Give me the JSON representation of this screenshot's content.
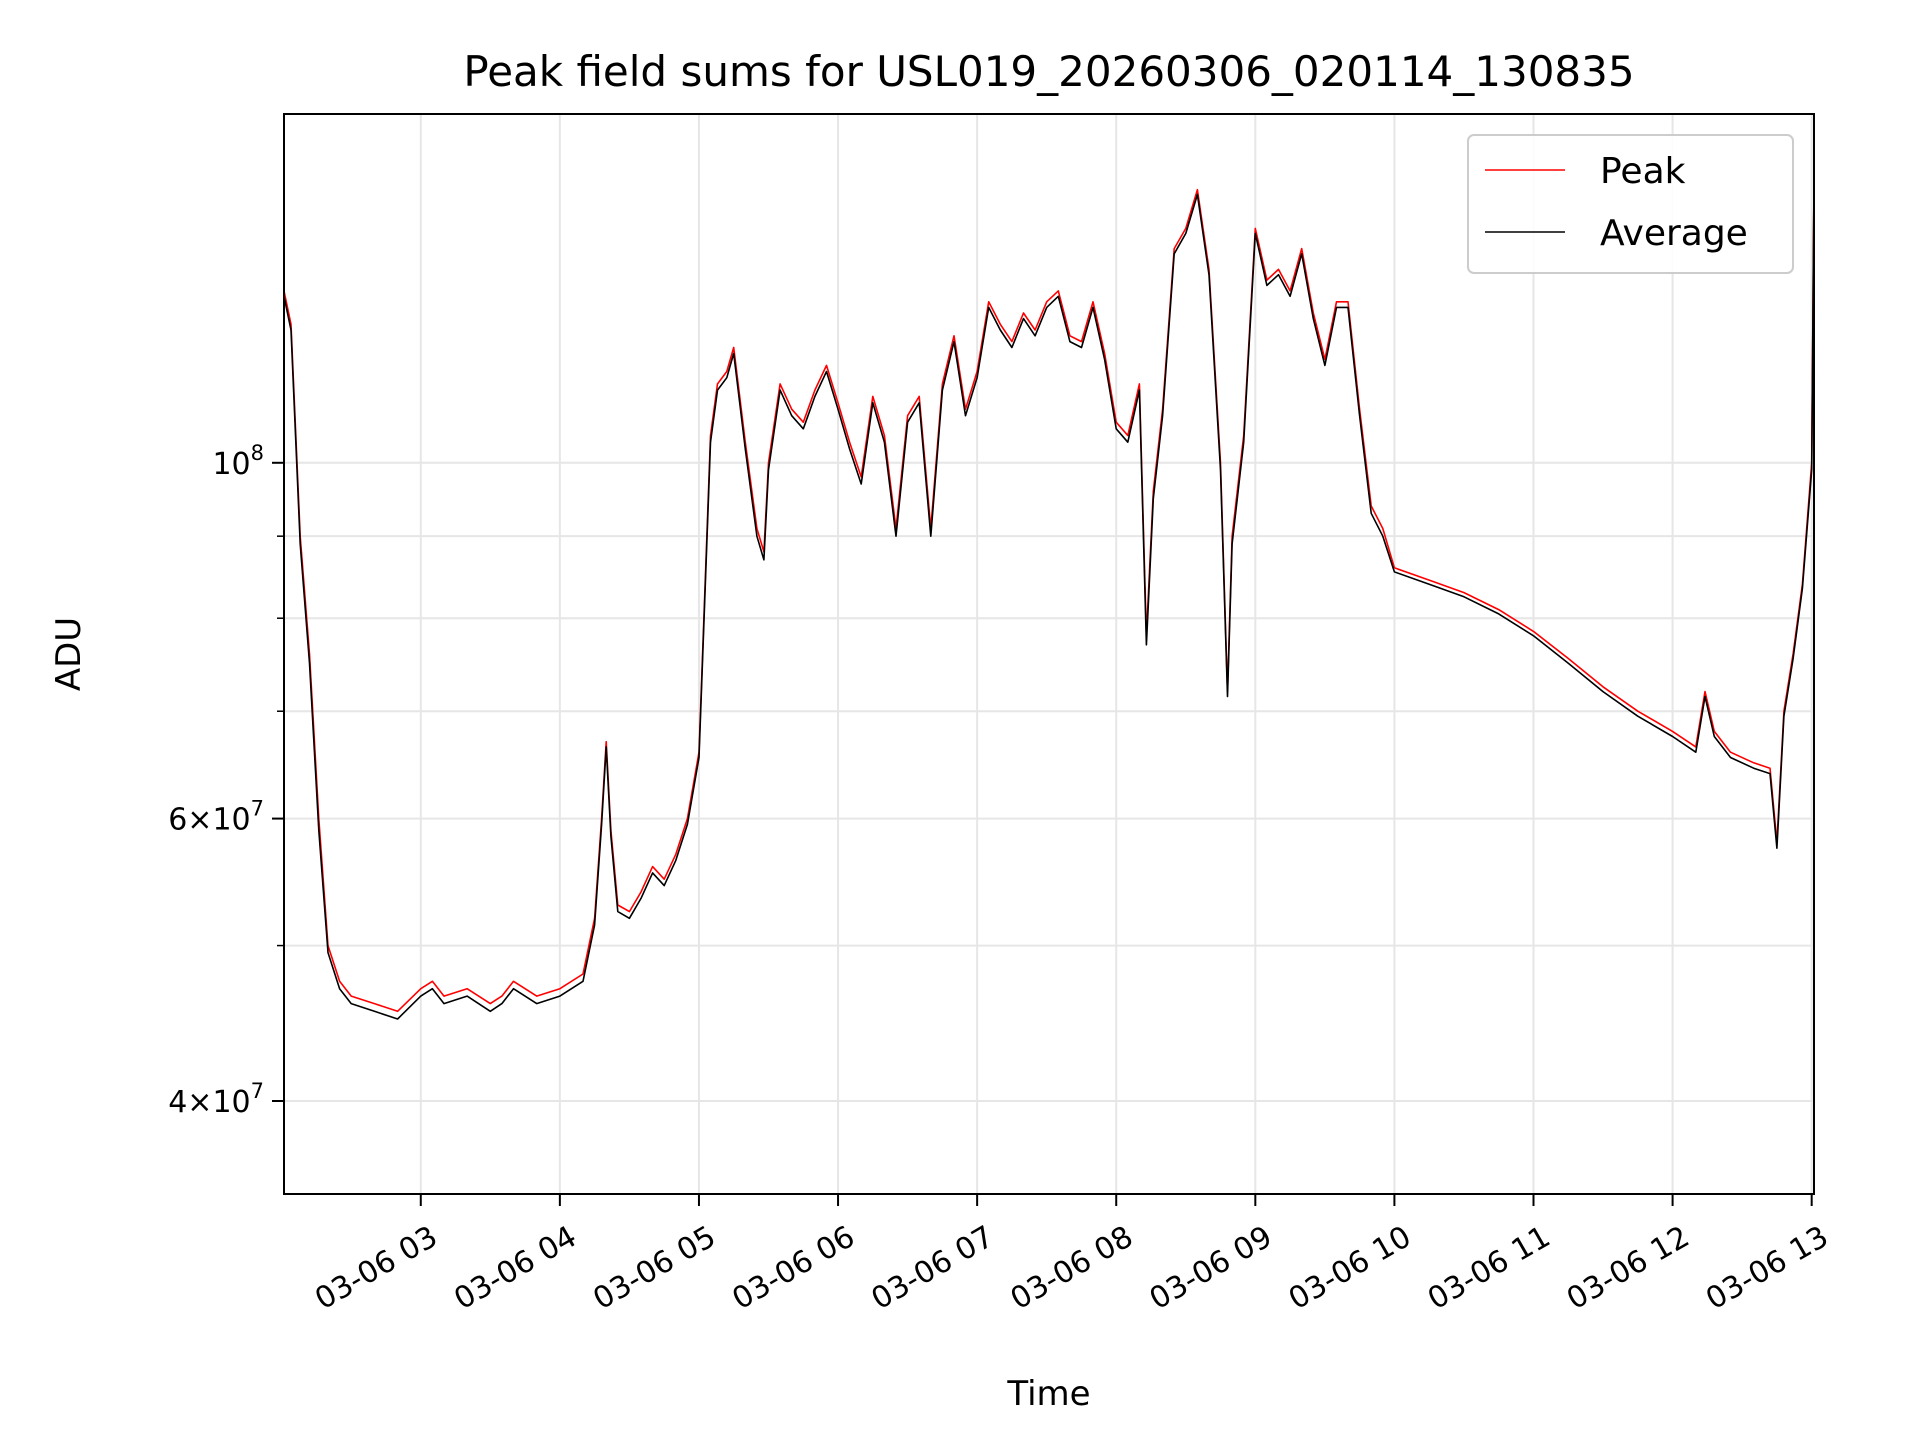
{
  "chart_data": {
    "type": "line",
    "title": "Peak field sums for USL019_20260306_020114_130835",
    "xlabel": "Time",
    "ylabel": "ADU",
    "y_scale": "log",
    "ylim": [
      35000000,
      165000000
    ],
    "xlim": [
      "2026-03-06 02:01",
      "2026-03-06 13:01"
    ],
    "x_ticks": [
      "03-06 03",
      "03-06 04",
      "03-06 05",
      "03-06 06",
      "03-06 07",
      "03-06 08",
      "03-06 09",
      "03-06 10",
      "03-06 11",
      "03-06 12",
      "03-06 13"
    ],
    "x_tick_times": [
      "2026-03-06 03:00",
      "2026-03-06 04:00",
      "2026-03-06 05:00",
      "2026-03-06 06:00",
      "2026-03-06 07:00",
      "2026-03-06 08:00",
      "2026-03-06 09:00",
      "2026-03-06 10:00",
      "2026-03-06 11:00",
      "2026-03-06 12:00",
      "2026-03-06 13:00"
    ],
    "y_ticks": [
      {
        "value": 40000000,
        "mantissa": "4",
        "exponent": "7"
      },
      {
        "value": 60000000,
        "mantissa": "6",
        "exponent": "7"
      },
      {
        "value": 100000000,
        "mantissa": "",
        "exponent": "8"
      }
    ],
    "y_minor_ticks": [
      50000000,
      70000000,
      80000000,
      90000000
    ],
    "grid": true,
    "legend_position": "top-right",
    "x": [
      "2026-03-06 02:01",
      "2026-03-06 02:04",
      "2026-03-06 02:08",
      "2026-03-06 02:12",
      "2026-03-06 02:16",
      "2026-03-06 02:20",
      "2026-03-06 02:25",
      "2026-03-06 02:30",
      "2026-03-06 02:40",
      "2026-03-06 02:50",
      "2026-03-06 03:00",
      "2026-03-06 03:05",
      "2026-03-06 03:10",
      "2026-03-06 03:20",
      "2026-03-06 03:30",
      "2026-03-06 03:35",
      "2026-03-06 03:40",
      "2026-03-06 03:50",
      "2026-03-06 04:00",
      "2026-03-06 04:10",
      "2026-03-06 04:15",
      "2026-03-06 04:18",
      "2026-03-06 04:20",
      "2026-03-06 04:22",
      "2026-03-06 04:25",
      "2026-03-06 04:30",
      "2026-03-06 04:35",
      "2026-03-06 04:40",
      "2026-03-06 04:45",
      "2026-03-06 04:50",
      "2026-03-06 04:55",
      "2026-03-06 05:00",
      "2026-03-06 05:05",
      "2026-03-06 05:08",
      "2026-03-06 05:12",
      "2026-03-06 05:15",
      "2026-03-06 05:20",
      "2026-03-06 05:25",
      "2026-03-06 05:28",
      "2026-03-06 05:30",
      "2026-03-06 05:35",
      "2026-03-06 05:40",
      "2026-03-06 05:45",
      "2026-03-06 05:50",
      "2026-03-06 05:55",
      "2026-03-06 06:00",
      "2026-03-06 06:05",
      "2026-03-06 06:10",
      "2026-03-06 06:15",
      "2026-03-06 06:20",
      "2026-03-06 06:25",
      "2026-03-06 06:30",
      "2026-03-06 06:35",
      "2026-03-06 06:40",
      "2026-03-06 06:45",
      "2026-03-06 06:50",
      "2026-03-06 06:55",
      "2026-03-06 07:00",
      "2026-03-06 07:05",
      "2026-03-06 07:10",
      "2026-03-06 07:15",
      "2026-03-06 07:20",
      "2026-03-06 07:25",
      "2026-03-06 07:30",
      "2026-03-06 07:35",
      "2026-03-06 07:40",
      "2026-03-06 07:45",
      "2026-03-06 07:50",
      "2026-03-06 07:55",
      "2026-03-06 08:00",
      "2026-03-06 08:05",
      "2026-03-06 08:10",
      "2026-03-06 08:13",
      "2026-03-06 08:16",
      "2026-03-06 08:20",
      "2026-03-06 08:25",
      "2026-03-06 08:30",
      "2026-03-06 08:35",
      "2026-03-06 08:40",
      "2026-03-06 08:45",
      "2026-03-06 08:48",
      "2026-03-06 08:50",
      "2026-03-06 08:55",
      "2026-03-06 09:00",
      "2026-03-06 09:05",
      "2026-03-06 09:10",
      "2026-03-06 09:15",
      "2026-03-06 09:20",
      "2026-03-06 09:25",
      "2026-03-06 09:30",
      "2026-03-06 09:35",
      "2026-03-06 09:40",
      "2026-03-06 09:45",
      "2026-03-06 09:50",
      "2026-03-06 09:55",
      "2026-03-06 10:00",
      "2026-03-06 10:15",
      "2026-03-06 10:30",
      "2026-03-06 10:45",
      "2026-03-06 11:00",
      "2026-03-06 11:15",
      "2026-03-06 11:30",
      "2026-03-06 11:45",
      "2026-03-06 12:00",
      "2026-03-06 12:10",
      "2026-03-06 12:14",
      "2026-03-06 12:18",
      "2026-03-06 12:25",
      "2026-03-06 12:35",
      "2026-03-06 12:42",
      "2026-03-06 12:45",
      "2026-03-06 12:48",
      "2026-03-06 12:52",
      "2026-03-06 12:56",
      "2026-03-06 13:00",
      "2026-03-06 13:01"
    ],
    "series": [
      {
        "name": "Peak",
        "color": "#ff0000",
        "values": [
          128000000,
          122000000,
          90000000,
          76000000,
          60000000,
          50000000,
          47500000,
          46500000,
          46000000,
          45500000,
          47000000,
          47500000,
          46500000,
          47000000,
          46000000,
          46500000,
          47500000,
          46500000,
          47000000,
          48000000,
          52000000,
          60000000,
          67000000,
          59000000,
          53000000,
          52500000,
          54000000,
          56000000,
          55000000,
          57000000,
          60000000,
          66000000,
          104000000,
          112000000,
          114000000,
          118000000,
          103000000,
          91000000,
          88000000,
          100000000,
          112000000,
          108000000,
          106000000,
          111000000,
          115000000,
          109000000,
          103000000,
          98000000,
          110000000,
          104000000,
          91000000,
          107000000,
          110000000,
          91000000,
          112000000,
          120000000,
          108000000,
          114000000,
          126000000,
          122000000,
          119000000,
          124000000,
          121000000,
          126000000,
          128000000,
          120000000,
          119000000,
          126000000,
          117000000,
          106000000,
          104000000,
          112000000,
          78000000,
          96000000,
          108000000,
          136000000,
          140000000,
          148000000,
          132000000,
          100000000,
          72000000,
          90000000,
          104000000,
          140000000,
          130000000,
          132000000,
          128000000,
          136000000,
          124000000,
          116000000,
          126000000,
          126000000,
          108000000,
          94000000,
          91000000,
          86000000,
          84500000,
          83000000,
          81000000,
          78500000,
          75500000,
          72500000,
          70000000,
          68000000,
          66500000,
          72000000,
          68000000,
          66000000,
          65000000,
          64500000,
          58000000,
          70000000,
          76000000,
          84000000,
          100000000,
          150000000
        ]
      },
      {
        "name": "Average",
        "color": "#000000",
        "values": [
          127000000,
          121000000,
          89000000,
          75000000,
          59000000,
          49500000,
          47000000,
          46000000,
          45500000,
          45000000,
          46500000,
          47000000,
          46000000,
          46500000,
          45500000,
          46000000,
          47000000,
          46000000,
          46500000,
          47500000,
          51500000,
          59500000,
          66500000,
          58500000,
          52500000,
          52000000,
          53500000,
          55500000,
          54500000,
          56500000,
          59500000,
          65500000,
          103000000,
          111000000,
          113000000,
          117000000,
          102000000,
          90000000,
          87000000,
          99000000,
          111000000,
          107000000,
          105000000,
          110000000,
          114000000,
          108000000,
          102000000,
          97000000,
          109000000,
          103000000,
          90000000,
          106000000,
          109000000,
          90000000,
          111000000,
          119000000,
          107000000,
          113000000,
          125000000,
          121000000,
          118000000,
          123000000,
          120000000,
          125000000,
          127000000,
          119000000,
          118000000,
          125000000,
          116000000,
          105000000,
          103000000,
          111000000,
          77000000,
          95000000,
          107000000,
          135000000,
          139000000,
          147000000,
          131000000,
          99000000,
          71500000,
          89000000,
          103000000,
          139000000,
          129000000,
          131000000,
          127000000,
          135000000,
          123000000,
          115000000,
          125000000,
          125000000,
          107000000,
          93000000,
          90000000,
          85500000,
          84000000,
          82500000,
          80500000,
          78000000,
          75000000,
          72000000,
          69500000,
          67500000,
          66000000,
          71500000,
          67500000,
          65500000,
          64500000,
          64000000,
          57500000,
          69500000,
          75500000,
          83500000,
          99000000,
          149000000
        ]
      }
    ]
  }
}
